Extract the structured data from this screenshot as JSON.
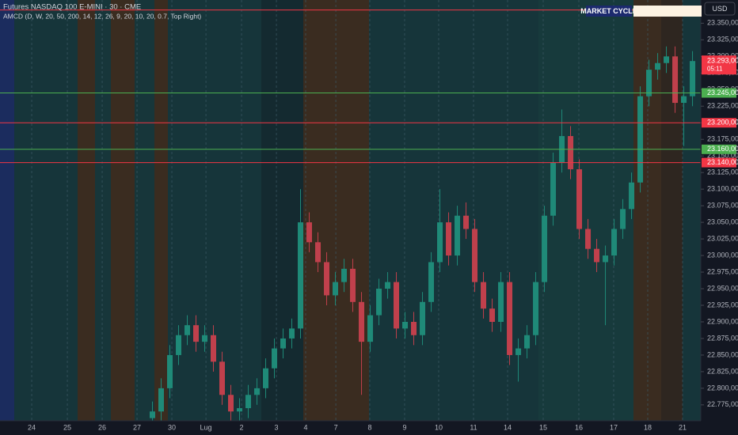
{
  "chart_data": {
    "type": "candlestick",
    "title": "Futures NASDAQ 100 E-MINI · 30 · CME",
    "subtitle": "AMCD (D, W, 20, 50, 200, 14, 12, 26, 9, 20, 10, 20, 0.7, Top Right)",
    "badge": "MARKET CYCLE",
    "currency": "USD",
    "up_color": "#1f8a78",
    "down_color": "#c0404c",
    "x": [
      17,
      18,
      19,
      20,
      21,
      22,
      23,
      24,
      25,
      26,
      27,
      28,
      29,
      30,
      31,
      32,
      33,
      34,
      35,
      36,
      37,
      38,
      39,
      40,
      41,
      42,
      43,
      44,
      45,
      46,
      47,
      48,
      49,
      50,
      51,
      52,
      53,
      54,
      55,
      56,
      57,
      58,
      59,
      60,
      61,
      62,
      63,
      64,
      65,
      66,
      67,
      68,
      69,
      70,
      71,
      72,
      73,
      74,
      75,
      76,
      77,
      78,
      79
    ],
    "open": [
      22755,
      22765,
      22800,
      22850,
      22880,
      22895,
      22870,
      22880,
      22840,
      22790,
      22765,
      22770,
      22790,
      22800,
      22830,
      22860,
      22875,
      22890,
      23050,
      23020,
      22990,
      22940,
      22960,
      22980,
      22930,
      22870,
      22910,
      22950,
      22960,
      22890,
      22900,
      22880,
      22930,
      22990,
      23050,
      23000,
      23060,
      23040,
      22960,
      22920,
      22900,
      22960,
      22850,
      22860,
      22880,
      22960,
      23060,
      23140,
      23180,
      23130,
      23040,
      23010,
      22990,
      23000,
      23040,
      23070,
      23110,
      23240,
      23280,
      23290,
      23300,
      23230,
      23240
    ],
    "high": [
      22780,
      22815,
      22865,
      22895,
      22910,
      22910,
      22895,
      22895,
      22855,
      22805,
      22785,
      22805,
      22815,
      22845,
      22875,
      22890,
      22905,
      23100,
      23065,
      23035,
      23005,
      22975,
      22995,
      22995,
      22945,
      22925,
      22965,
      22975,
      22975,
      22915,
      22915,
      22945,
      23005,
      23100,
      23065,
      23075,
      23080,
      23055,
      22975,
      22935,
      22975,
      22975,
      22875,
      22895,
      22975,
      23075,
      23155,
      23220,
      23195,
      23145,
      23055,
      23025,
      23015,
      23055,
      23085,
      23125,
      23255,
      23295,
      23305,
      23315,
      23315,
      23255,
      23308
    ],
    "low": [
      22740,
      22750,
      22785,
      22835,
      22865,
      22855,
      22855,
      22825,
      22775,
      22750,
      22750,
      22755,
      22775,
      22785,
      22815,
      22845,
      22860,
      22875,
      23005,
      22975,
      22925,
      22925,
      22945,
      22915,
      22790,
      22855,
      22895,
      22935,
      22875,
      22875,
      22865,
      22865,
      22915,
      22975,
      22985,
      22985,
      23025,
      22945,
      22905,
      22885,
      22885,
      22835,
      22810,
      22845,
      22865,
      22945,
      23045,
      23125,
      23115,
      23025,
      22995,
      22975,
      22895,
      22985,
      23025,
      23055,
      23095,
      23225,
      23265,
      23275,
      23215,
      23165,
      23225
    ],
    "close": [
      22765,
      22800,
      22850,
      22880,
      22895,
      22870,
      22880,
      22840,
      22790,
      22765,
      22770,
      22790,
      22800,
      22830,
      22860,
      22875,
      22890,
      23050,
      23020,
      22990,
      22940,
      22960,
      22980,
      22930,
      22870,
      22910,
      22950,
      22960,
      22890,
      22900,
      22880,
      22930,
      22990,
      23050,
      23000,
      23060,
      23040,
      22960,
      22920,
      22900,
      22960,
      22850,
      22860,
      22880,
      22960,
      23060,
      23140,
      23180,
      23130,
      23040,
      23010,
      22990,
      23000,
      23040,
      23070,
      23110,
      23240,
      23280,
      23290,
      23300,
      23230,
      23240,
      23293
    ],
    "xlim": [
      -0.5,
      79.95
    ],
    "xticks": [
      {
        "value": 3.14,
        "label": "24"
      },
      {
        "value": 7.23,
        "label": "25"
      },
      {
        "value": 11.23,
        "label": "26"
      },
      {
        "value": 15.23,
        "label": "27"
      },
      {
        "value": 19.23,
        "label": "30"
      },
      {
        "value": 23.14,
        "label": "Lug"
      },
      {
        "value": 27.23,
        "label": "2"
      },
      {
        "value": 31.23,
        "label": "3"
      },
      {
        "value": 34.59,
        "label": "4"
      },
      {
        "value": 38.05,
        "label": "7"
      },
      {
        "value": 41.95,
        "label": "8"
      },
      {
        "value": 45.95,
        "label": "9"
      },
      {
        "value": 49.86,
        "label": "10"
      },
      {
        "value": 53.86,
        "label": "11"
      },
      {
        "value": 57.77,
        "label": "14"
      },
      {
        "value": 61.86,
        "label": "15"
      },
      {
        "value": 65.95,
        "label": "16"
      },
      {
        "value": 69.95,
        "label": "17"
      },
      {
        "value": 73.86,
        "label": "18"
      },
      {
        "value": 77.86,
        "label": "21"
      }
    ],
    "ylim": [
      22751,
      23385
    ],
    "yticks": [
      {
        "value": 22775,
        "label": "22.775,00"
      },
      {
        "value": 22800,
        "label": "22.800,00"
      },
      {
        "value": 22825,
        "label": "22.825,00"
      },
      {
        "value": 22850,
        "label": "22.850,00"
      },
      {
        "value": 22875,
        "label": "22.875,00"
      },
      {
        "value": 22900,
        "label": "22.900,00"
      },
      {
        "value": 22925,
        "label": "22.925,00"
      },
      {
        "value": 22950,
        "label": "22.950,00"
      },
      {
        "value": 22975,
        "label": "22.975,00"
      },
      {
        "value": 23000,
        "label": "23.000,00"
      },
      {
        "value": 23025,
        "label": "23.025,00"
      },
      {
        "value": 23050,
        "label": "23.050,00"
      },
      {
        "value": 23075,
        "label": "23.075,00"
      },
      {
        "value": 23100,
        "label": "23.100,00"
      },
      {
        "value": 23125,
        "label": "23.125,00"
      },
      {
        "value": 23150,
        "label": "23.150,00"
      },
      {
        "value": 23175,
        "label": "23.175,00"
      },
      {
        "value": 23200,
        "label": "23.200,00"
      },
      {
        "value": 23225,
        "label": "23.225,00"
      },
      {
        "value": 23250,
        "label": "23.250,00"
      },
      {
        "value": 23275,
        "label": "23.275,00"
      },
      {
        "value": 23300,
        "label": "23.300,00"
      },
      {
        "value": 23325,
        "label": "23.325,00"
      },
      {
        "value": 23350,
        "label": "23.350,00"
      }
    ],
    "levels": [
      {
        "value": 23370,
        "color": "#f23645"
      },
      {
        "value": 23245,
        "label": "23.245,00",
        "color": "#4caf50"
      },
      {
        "value": 23200,
        "label": "23.200,00",
        "color": "#f23645"
      },
      {
        "value": 23160,
        "label": "23.160,00",
        "color": "#4caf50"
      },
      {
        "value": 23140,
        "label": "23.140,00",
        "color": "#f23645"
      }
    ],
    "last_price": {
      "value": 23293,
      "label": "23.293,00",
      "countdown": "05:11",
      "color": "#f23645"
    }
  }
}
